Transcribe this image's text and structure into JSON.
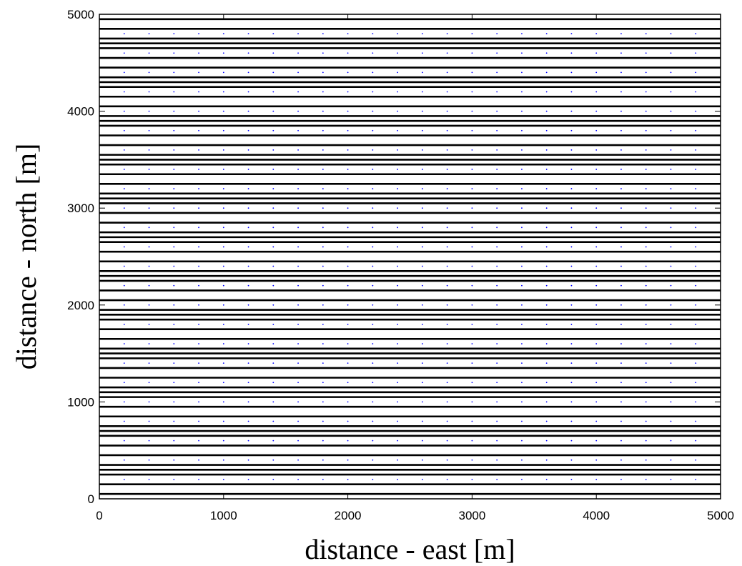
{
  "chart_data": {
    "type": "line",
    "xlabel": "distance - east [m]",
    "ylabel": "distance - north [m]",
    "xlim": [
      0,
      5000
    ],
    "ylim": [
      0,
      5000
    ],
    "xticks": [
      0,
      1000,
      2000,
      3000,
      4000,
      5000
    ],
    "yticks": [
      0,
      1000,
      2000,
      3000,
      4000,
      5000
    ],
    "grid": false,
    "line_color": "#000000",
    "marker_color": "#0000ff",
    "horizontal_lines_y": [
      50,
      150,
      250,
      300,
      350,
      450,
      550,
      650,
      700,
      750,
      850,
      950,
      1050,
      1100,
      1150,
      1250,
      1350,
      1450,
      1500,
      1550,
      1650,
      1750,
      1850,
      1900,
      1950,
      2050,
      2150,
      2250,
      2300,
      2350,
      2450,
      2550,
      2650,
      2700,
      2750,
      2850,
      2950,
      3050,
      3100,
      3150,
      3250,
      3350,
      3450,
      3500,
      3550,
      3650,
      3750,
      3850,
      3900,
      3950,
      4050,
      4150,
      4250,
      4300,
      4350,
      4450,
      4550,
      4650,
      4700,
      4750,
      4850,
      4950
    ],
    "marker_x": [
      200,
      400,
      600,
      800,
      1000,
      1200,
      1400,
      1600,
      1800,
      2000,
      2200,
      2400,
      2600,
      2800,
      3000,
      3200,
      3400,
      3600,
      3800,
      4000,
      4200,
      4400,
      4600,
      4800
    ],
    "marker_y": [
      200,
      400,
      600,
      800,
      1000,
      1200,
      1400,
      1600,
      1800,
      2000,
      2200,
      2400,
      2600,
      2800,
      3000,
      3200,
      3400,
      3600,
      3800,
      4000,
      4200,
      4400,
      4600,
      4800
    ]
  }
}
